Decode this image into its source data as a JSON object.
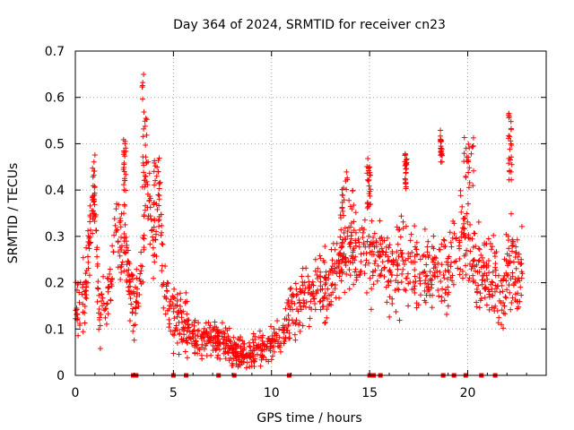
{
  "chart_data": {
    "type": "scatter",
    "title": "Day 364 of 2024, SRMTID for receiver cn23",
    "xlabel": "GPS time / hours",
    "ylabel": "SRMTID / TECUs",
    "xlim": [
      0,
      24
    ],
    "ylim": [
      0,
      0.7
    ],
    "xticks": [
      0,
      5,
      10,
      15,
      20
    ],
    "yticks": [
      0,
      0.1,
      0.2,
      0.3,
      0.4,
      0.5,
      0.6,
      0.7
    ],
    "ytick_labels": [
      "0",
      "0.1",
      "0.2",
      "0.3",
      "0.4",
      "0.5",
      "0.6",
      "0.7"
    ],
    "grid": true,
    "marker": "+",
    "color": "#ff0000",
    "trend": [
      [
        0.0,
        0.15
      ],
      [
        0.5,
        0.16
      ],
      [
        0.8,
        0.34
      ],
      [
        1.0,
        0.4
      ],
      [
        1.2,
        0.14
      ],
      [
        1.5,
        0.15
      ],
      [
        1.8,
        0.18
      ],
      [
        2.0,
        0.3
      ],
      [
        2.5,
        0.27
      ],
      [
        3.0,
        0.15
      ],
      [
        3.4,
        0.2
      ],
      [
        3.6,
        0.45
      ],
      [
        3.8,
        0.35
      ],
      [
        4.0,
        0.25
      ],
      [
        4.3,
        0.4
      ],
      [
        4.5,
        0.18
      ],
      [
        5.0,
        0.13
      ],
      [
        5.5,
        0.12
      ],
      [
        6.0,
        0.08
      ],
      [
        7.0,
        0.08
      ],
      [
        7.5,
        0.07
      ],
      [
        8.0,
        0.05
      ],
      [
        9.0,
        0.05
      ],
      [
        10.0,
        0.07
      ],
      [
        10.5,
        0.08
      ],
      [
        11.0,
        0.13
      ],
      [
        11.5,
        0.16
      ],
      [
        12.0,
        0.18
      ],
      [
        13.0,
        0.2
      ],
      [
        13.5,
        0.25
      ],
      [
        14.0,
        0.28
      ],
      [
        14.5,
        0.26
      ],
      [
        15.0,
        0.26
      ],
      [
        15.5,
        0.25
      ],
      [
        16.0,
        0.22
      ],
      [
        16.5,
        0.24
      ],
      [
        17.0,
        0.23
      ],
      [
        18.0,
        0.23
      ],
      [
        19.0,
        0.23
      ],
      [
        19.5,
        0.27
      ],
      [
        20.0,
        0.3
      ],
      [
        20.5,
        0.22
      ],
      [
        21.0,
        0.22
      ],
      [
        21.5,
        0.2
      ],
      [
        21.8,
        0.17
      ],
      [
        22.2,
        0.24
      ],
      [
        22.5,
        0.22
      ],
      [
        22.8,
        0.24
      ]
    ],
    "clusters": [
      {
        "x0": 0.85,
        "x1": 1.0,
        "y0": 0.33,
        "y1": 0.5
      },
      {
        "x0": 3.4,
        "x1": 3.65,
        "y0": 0.4,
        "y1": 0.66
      },
      {
        "x0": 4.0,
        "x1": 4.3,
        "y0": 0.3,
        "y1": 0.49
      },
      {
        "x0": 2.45,
        "x1": 2.6,
        "y0": 0.3,
        "y1": 0.52
      },
      {
        "x0": 14.85,
        "x1": 15.05,
        "y0": 0.35,
        "y1": 0.47
      },
      {
        "x0": 19.8,
        "x1": 20.3,
        "y0": 0.4,
        "y1": 0.53
      },
      {
        "x0": 22.05,
        "x1": 22.25,
        "y0": 0.4,
        "y1": 0.57
      },
      {
        "x0": 16.8,
        "x1": 16.9,
        "y0": 0.4,
        "y1": 0.48
      },
      {
        "x0": 18.6,
        "x1": 18.7,
        "y0": 0.45,
        "y1": 0.53
      },
      {
        "x0": 13.5,
        "x1": 14.2,
        "y0": 0.32,
        "y1": 0.44
      }
    ],
    "zero_markers": [
      2.95,
      3.1,
      5.0,
      5.65,
      7.3,
      8.1,
      10.9,
      15.0,
      15.2,
      15.55,
      18.75,
      19.3,
      19.9,
      20.7,
      21.4
    ]
  }
}
